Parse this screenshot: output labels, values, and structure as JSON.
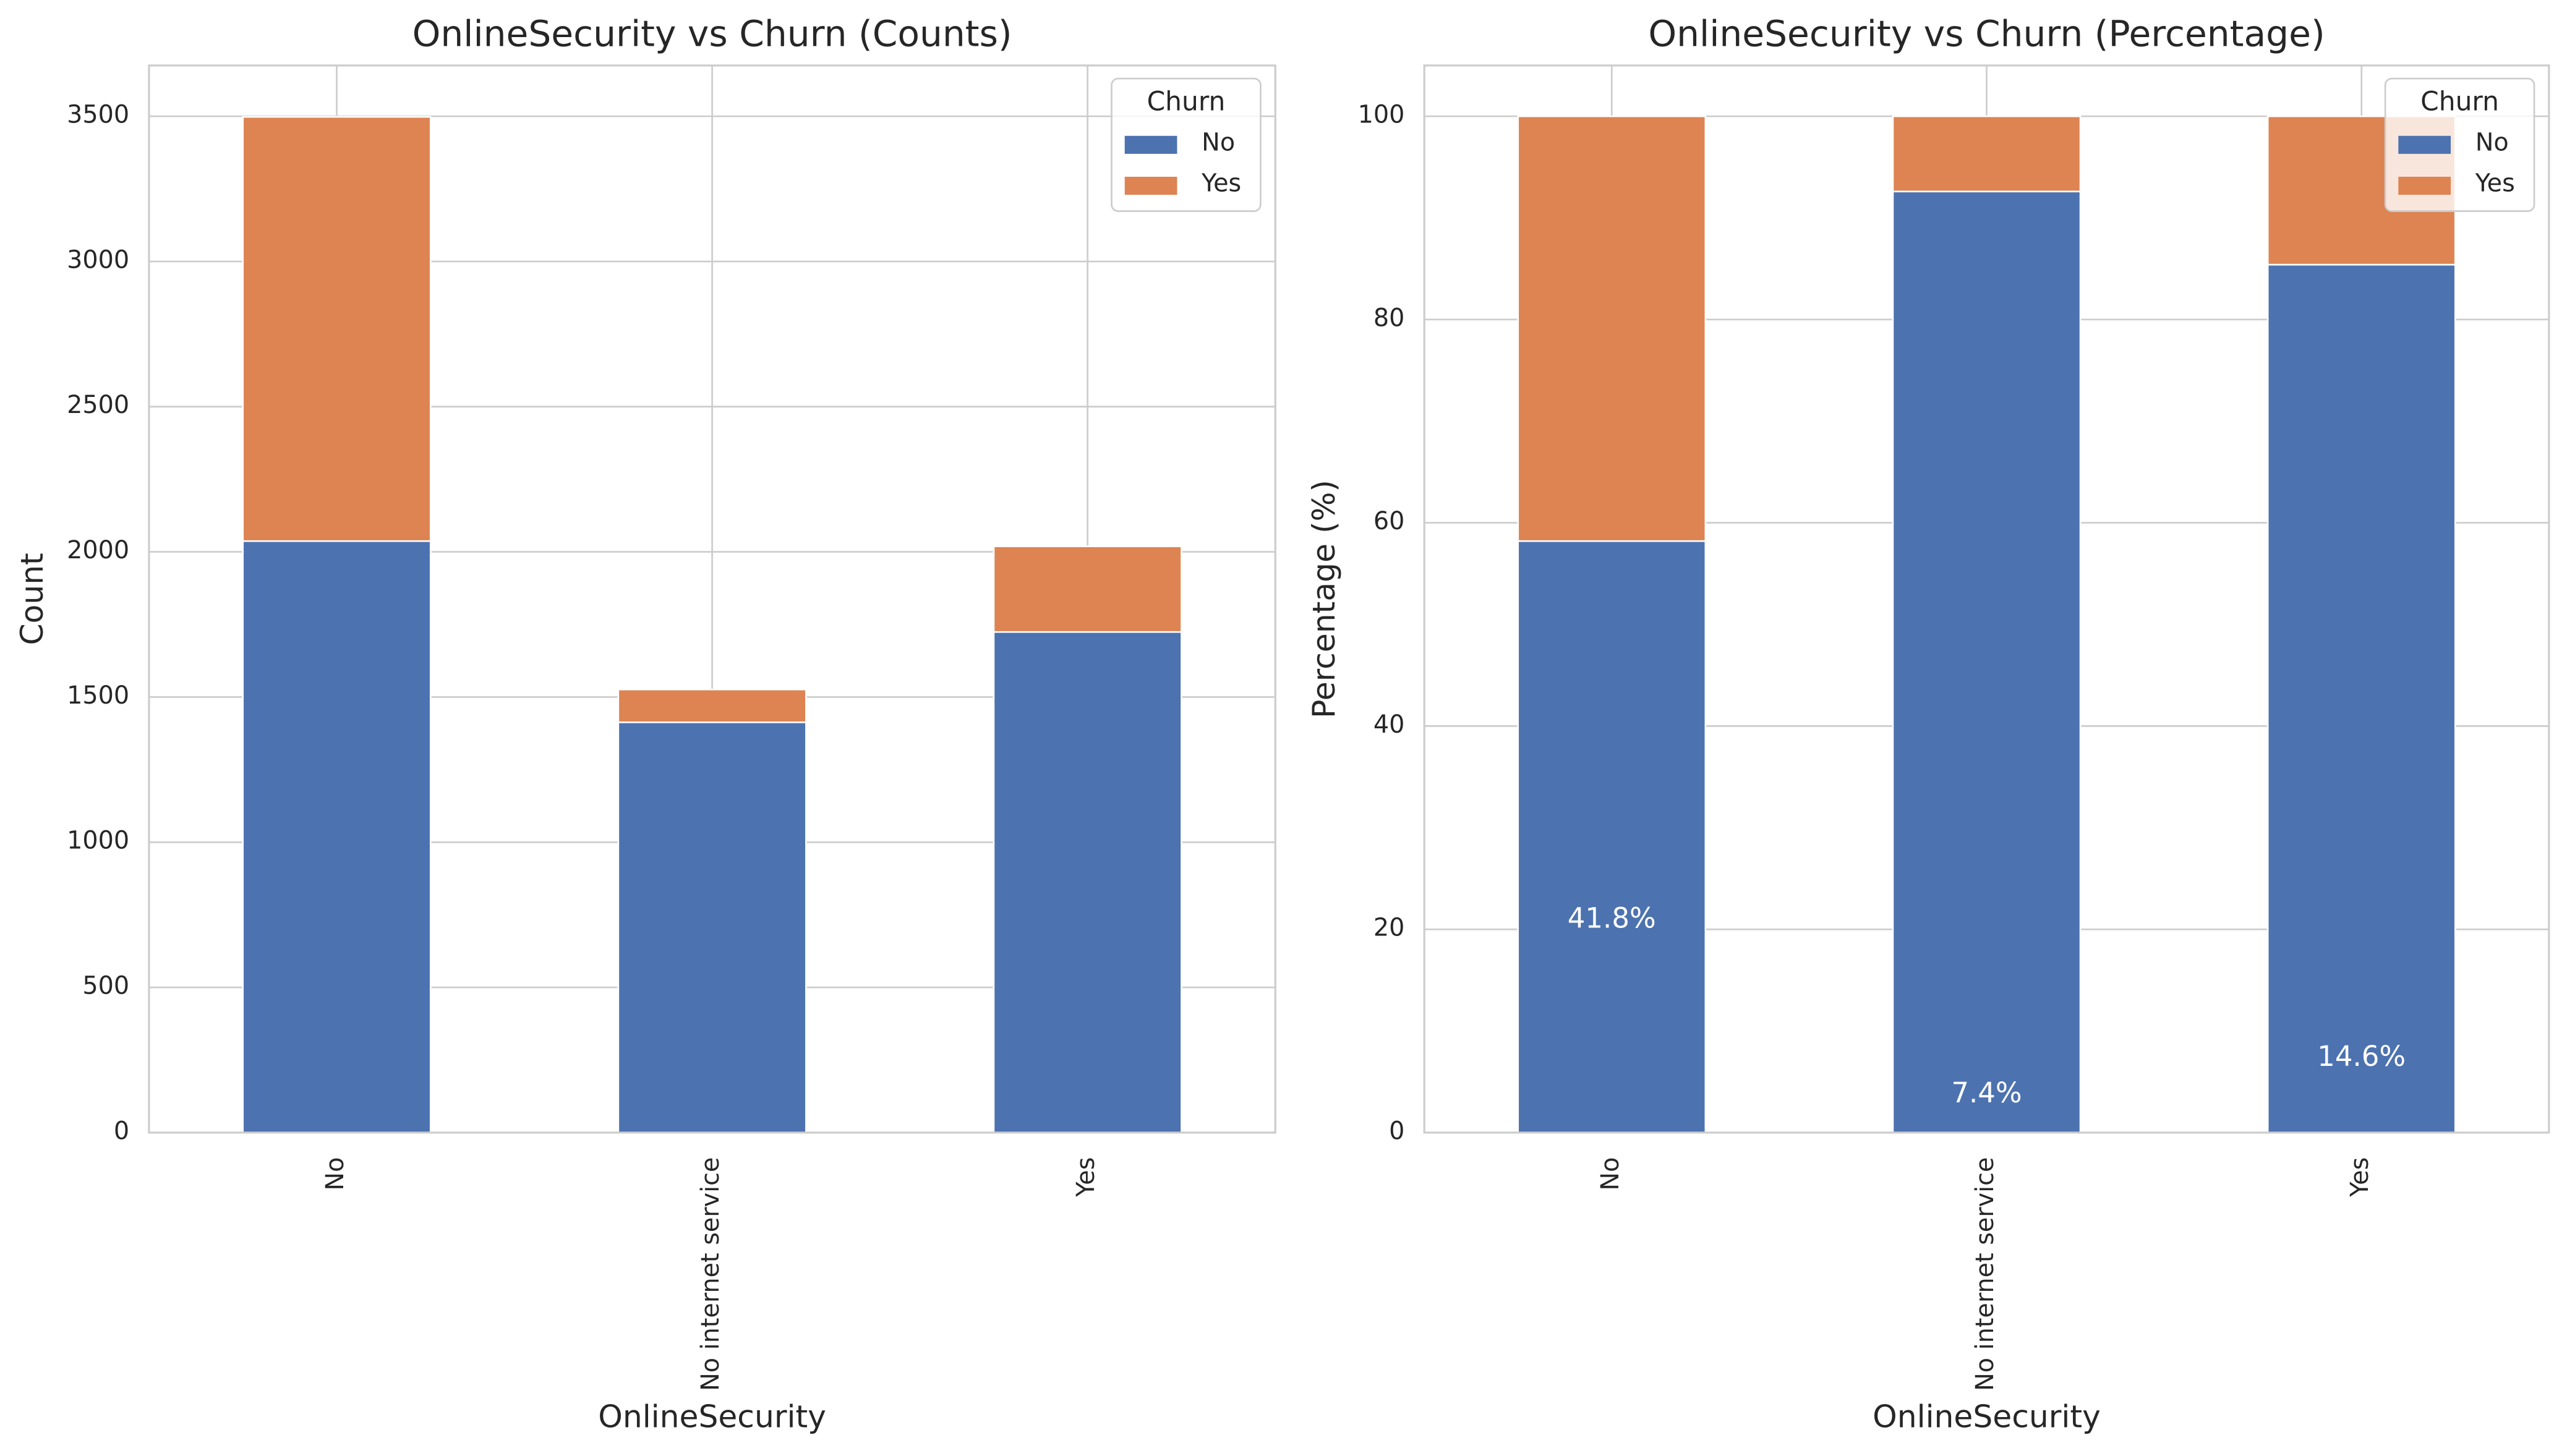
{
  "chart_data": [
    {
      "type": "bar",
      "stacked": true,
      "title": "OnlineSecurity vs Churn (Counts)",
      "xlabel": "OnlineSecurity",
      "ylabel": "Count",
      "categories": [
        "No",
        "No internet service",
        "Yes"
      ],
      "series": [
        {
          "name": "No",
          "color": "#4c72b0",
          "values": [
            2037,
            1413,
            1724
          ]
        },
        {
          "name": "Yes",
          "color": "#dd8452",
          "values": [
            1461,
            113,
            295
          ]
        }
      ],
      "ylim": [
        0,
        3675
      ],
      "yticks": [
        0,
        500,
        1000,
        1500,
        2000,
        2500,
        3000,
        3500
      ],
      "grid": true,
      "legend_title": "Churn",
      "legend": "upper right"
    },
    {
      "type": "bar",
      "stacked": true,
      "title": "OnlineSecurity vs Churn (Percentage)",
      "xlabel": "OnlineSecurity",
      "ylabel": "Percentage (%)",
      "categories": [
        "No",
        "No internet service",
        "Yes"
      ],
      "series": [
        {
          "name": "No",
          "color": "#4c72b0",
          "values": [
            58.2,
            92.6,
            85.4
          ]
        },
        {
          "name": "Yes",
          "color": "#dd8452",
          "values": [
            41.8,
            7.4,
            14.6
          ],
          "value_labels": [
            "41.8%",
            "7.4%",
            "14.6%"
          ]
        }
      ],
      "ylim": [
        0,
        105
      ],
      "yticks": [
        0,
        20,
        40,
        60,
        80,
        100
      ],
      "grid": true,
      "legend_title": "Churn",
      "legend": "upper right"
    }
  ]
}
